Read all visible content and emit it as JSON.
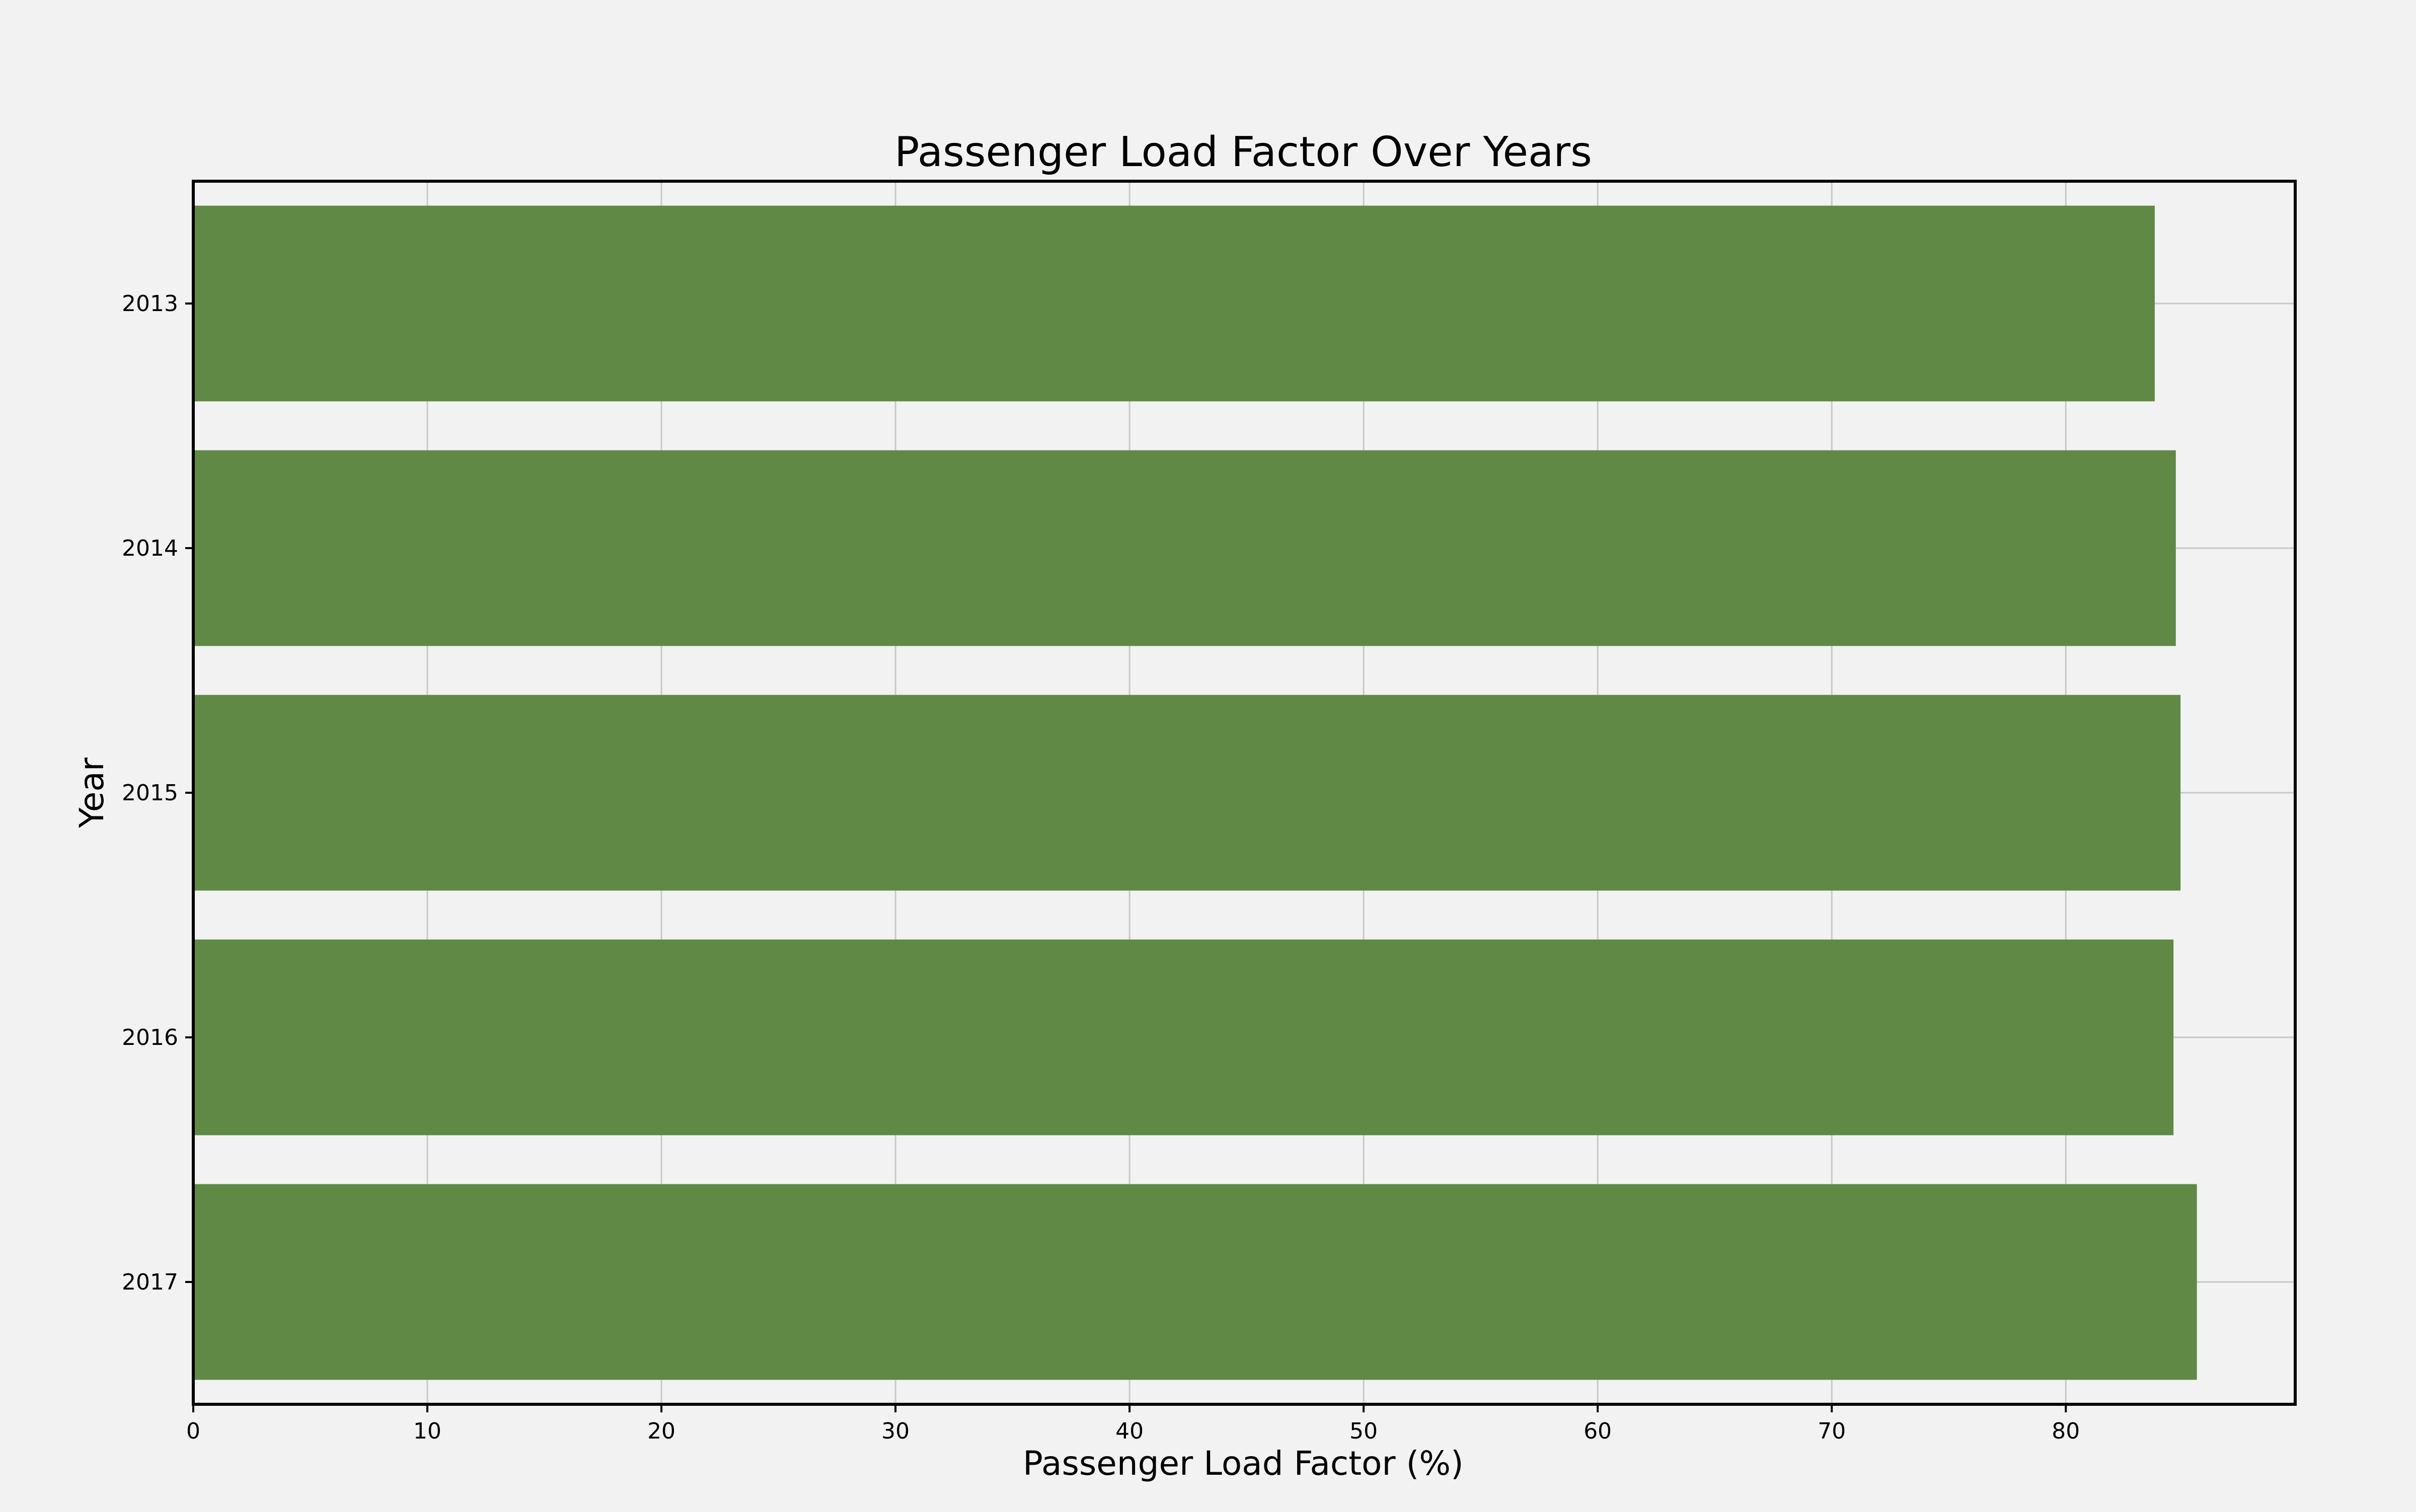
{
  "chart_data": {
    "type": "bar",
    "orientation": "horizontal",
    "title": "Passenger Load Factor Over Years",
    "xlabel": "Passenger Load Factor (%)",
    "ylabel": "Year",
    "categories": [
      "2013",
      "2014",
      "2015",
      "2016",
      "2017"
    ],
    "values": [
      83.8,
      84.7,
      84.9,
      84.6,
      85.6
    ],
    "xlim": [
      0,
      89.8
    ],
    "xticks": [
      0,
      10,
      20,
      30,
      40,
      50,
      60,
      70,
      80
    ],
    "grid": true,
    "legend": "none",
    "colors": {
      "bar": "#608945",
      "background": "#f2f2f2",
      "grid": "#c8c8c8",
      "axis": "#000000"
    }
  }
}
